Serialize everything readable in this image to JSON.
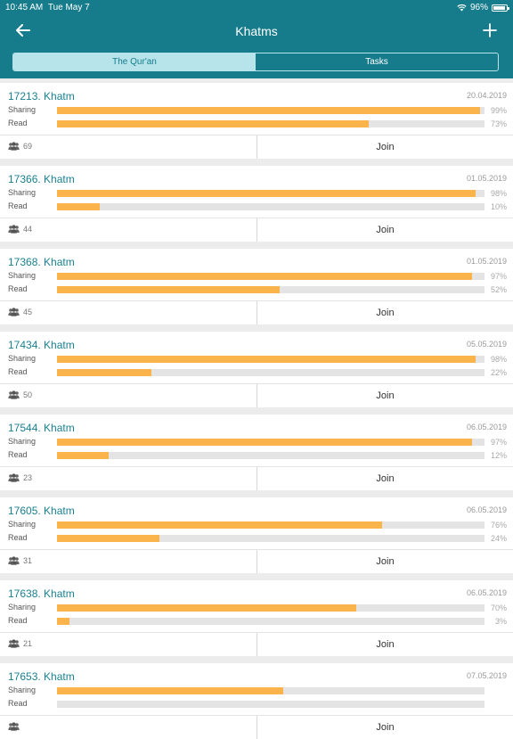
{
  "status": {
    "time": "10:45 AM",
    "date": "Tue May 7",
    "battery": "96%"
  },
  "nav": {
    "title": "Khatms"
  },
  "tabs": [
    {
      "label": "The Qur'an",
      "active": true
    },
    {
      "label": "Tasks",
      "active": false
    }
  ],
  "labels": {
    "sharing": "Sharing",
    "read": "Read",
    "join": "Join"
  },
  "colors": {
    "header": "#167c8c",
    "accent": "#1a8090",
    "bar": "#fbb34b",
    "track": "#e4e4e4"
  },
  "khatms": [
    {
      "title": "17213. Khatm",
      "date": "20.04.2019",
      "sharing": 99,
      "sharing_label": "99%",
      "read": 73,
      "read_label": "73%",
      "members": "69"
    },
    {
      "title": "17366. Khatm",
      "date": "01.05.2019",
      "sharing": 98,
      "sharing_label": "98%",
      "read": 10,
      "read_label": "10%",
      "members": "44"
    },
    {
      "title": "17368. Khatm",
      "date": "01.05.2019",
      "sharing": 97,
      "sharing_label": "97%",
      "read": 52,
      "read_label": "52%",
      "members": "45"
    },
    {
      "title": "17434. Khatm",
      "date": "05.05.2019",
      "sharing": 98,
      "sharing_label": "98%",
      "read": 22,
      "read_label": "22%",
      "members": "50"
    },
    {
      "title": "17544. Khatm",
      "date": "06.05.2019",
      "sharing": 97,
      "sharing_label": "97%",
      "read": 12,
      "read_label": "12%",
      "members": "23"
    },
    {
      "title": "17605. Khatm",
      "date": "06.05.2019",
      "sharing": 76,
      "sharing_label": "76%",
      "read": 24,
      "read_label": "24%",
      "members": "31"
    },
    {
      "title": "17638. Khatm",
      "date": "06.05.2019",
      "sharing": 70,
      "sharing_label": "70%",
      "read": 3,
      "read_label": "3%",
      "members": "21"
    },
    {
      "title": "17653. Khatm",
      "date": "07.05.2019",
      "sharing": 53,
      "sharing_label": "",
      "read": 0,
      "read_label": "",
      "members": ""
    }
  ]
}
